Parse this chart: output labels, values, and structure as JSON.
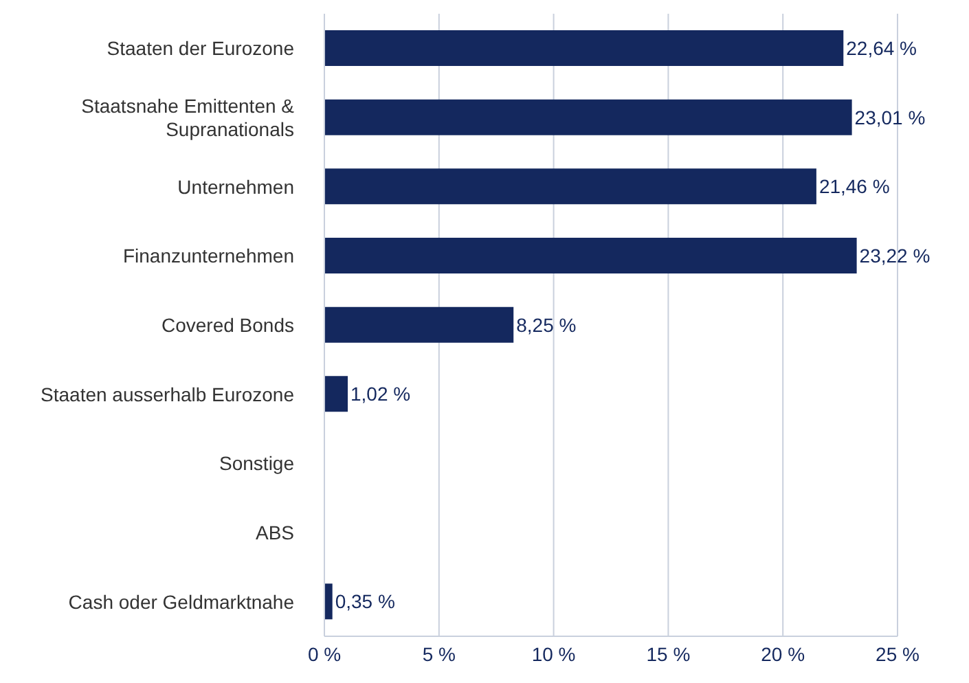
{
  "chart_data": {
    "type": "bar",
    "orientation": "horizontal",
    "categories": [
      "Staaten der Eurozone",
      "Staatsnahe Emittenten & Supranationals",
      "Unternehmen",
      "Finanzunternehmen",
      "Covered Bonds",
      "Staaten ausserhalb Eurozone",
      "Sonstige",
      "ABS",
      "Cash oder Geldmarktnahe"
    ],
    "values": [
      22.64,
      23.01,
      21.46,
      23.22,
      8.25,
      1.02,
      null,
      null,
      0.35
    ],
    "value_labels": [
      "22,64 %",
      "23,01 %",
      "21,46 %",
      "23,22 %",
      "8,25 %",
      "1,02 %",
      null,
      null,
      "0,35 %"
    ],
    "color": "#14285e",
    "xlim": [
      0,
      25
    ],
    "xticks": [
      {
        "value": 0,
        "label": "0 %"
      },
      {
        "value": 5,
        "label": "5 %"
      },
      {
        "value": 10,
        "label": "10 %"
      },
      {
        "value": 15,
        "label": "15 %"
      },
      {
        "value": 20,
        "label": "20 %"
      },
      {
        "value": 25,
        "label": "25 %"
      }
    ],
    "grid": "x"
  }
}
